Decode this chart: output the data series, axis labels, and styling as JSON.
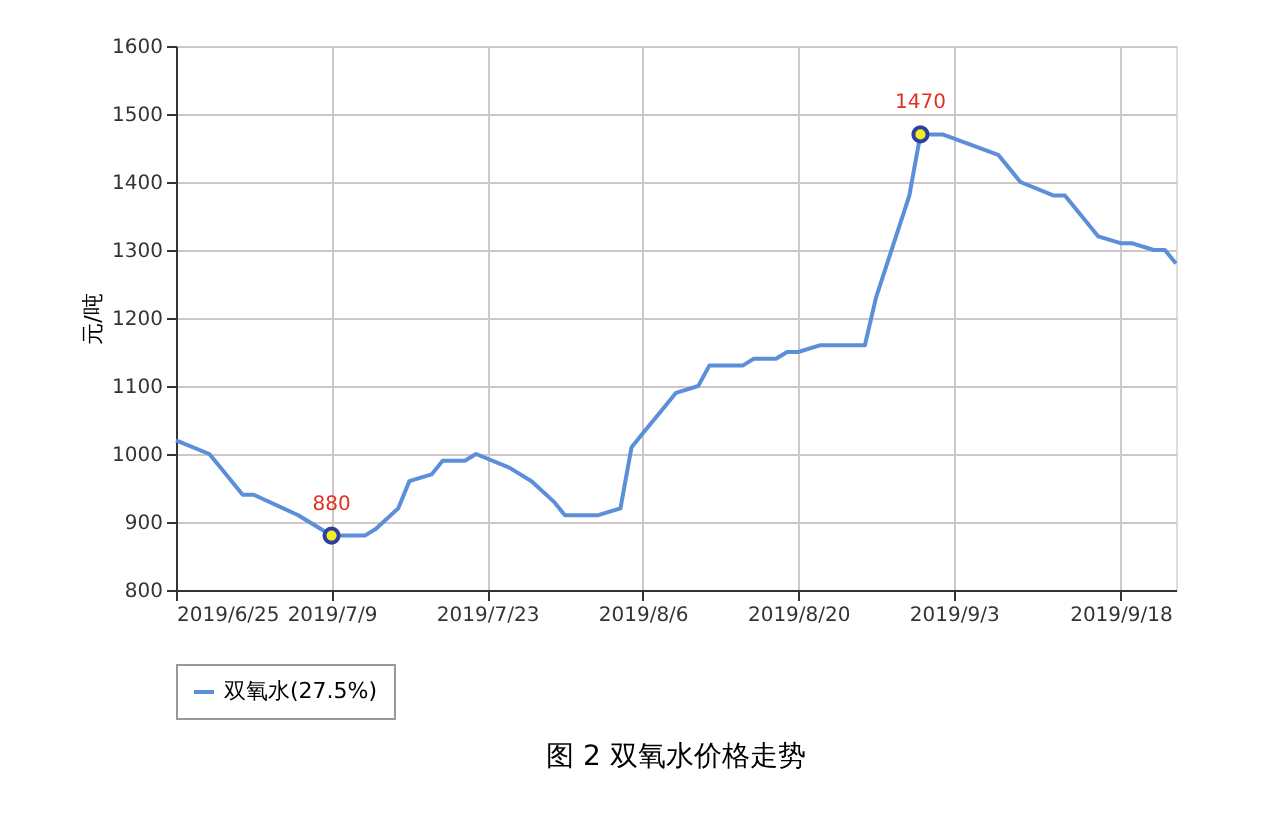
{
  "chart_data": {
    "type": "line",
    "title": "图 2  双氧水价格走势",
    "ylabel": "元/吨",
    "x": [
      "2019-06-25",
      "2019-06-28",
      "2019-06-29",
      "2019-07-01",
      "2019-07-02",
      "2019-07-06",
      "2019-07-08",
      "2019-07-09",
      "2019-07-12",
      "2019-07-13",
      "2019-07-15",
      "2019-07-16",
      "2019-07-18",
      "2019-07-19",
      "2019-07-21",
      "2019-07-22",
      "2019-07-25",
      "2019-07-27",
      "2019-07-29",
      "2019-07-30",
      "2019-08-02",
      "2019-08-04",
      "2019-08-05",
      "2019-08-06",
      "2019-08-08",
      "2019-08-09",
      "2019-08-11",
      "2019-08-12",
      "2019-08-15",
      "2019-08-16",
      "2019-08-18",
      "2019-08-19",
      "2019-08-20",
      "2019-08-22",
      "2019-08-26",
      "2019-08-27",
      "2019-08-29",
      "2019-08-30",
      "2019-08-31",
      "2019-09-02",
      "2019-09-07",
      "2019-09-09",
      "2019-09-12",
      "2019-09-13",
      "2019-09-15",
      "2019-09-16",
      "2019-09-18",
      "2019-09-19",
      "2019-09-21",
      "2019-09-22",
      "2019-09-23"
    ],
    "series": [
      {
        "name": "双氧水(27.5%)",
        "color": "#5b8fd9",
        "values": [
          1020,
          1000,
          980,
          940,
          940,
          910,
          890,
          880,
          880,
          890,
          920,
          960,
          970,
          990,
          990,
          1000,
          980,
          960,
          930,
          910,
          910,
          920,
          1010,
          1030,
          1070,
          1090,
          1100,
          1130,
          1130,
          1140,
          1140,
          1150,
          1150,
          1160,
          1160,
          1230,
          1330,
          1380,
          1470,
          1470,
          1440,
          1400,
          1380,
          1380,
          1340,
          1320,
          1310,
          1310,
          1300,
          1300,
          1280
        ]
      }
    ],
    "annotations": [
      {
        "text": "880",
        "x": "2019-07-09",
        "y": 880
      },
      {
        "text": "1470",
        "x": "2019-08-31",
        "y": 1470
      }
    ],
    "xlim": [
      "2019-06-25",
      "2019-09-23"
    ],
    "xticks": [
      {
        "value": "2019-06-25",
        "label": "2019/6/25"
      },
      {
        "value": "2019-07-09",
        "label": "2019/7/9"
      },
      {
        "value": "2019-07-23",
        "label": "2019/7/23"
      },
      {
        "value": "2019-08-06",
        "label": "2019/8/6"
      },
      {
        "value": "2019-08-20",
        "label": "2019/8/20"
      },
      {
        "value": "2019-09-03",
        "label": "2019/9/3"
      },
      {
        "value": "2019-09-18",
        "label": "2019/9/18"
      }
    ],
    "ylim": [
      800,
      1600
    ],
    "yticks": [
      800,
      900,
      1000,
      1100,
      1200,
      1300,
      1400,
      1500,
      1600
    ],
    "grid": true,
    "legend": "bottom",
    "marker": "none",
    "line_style": "solid"
  }
}
